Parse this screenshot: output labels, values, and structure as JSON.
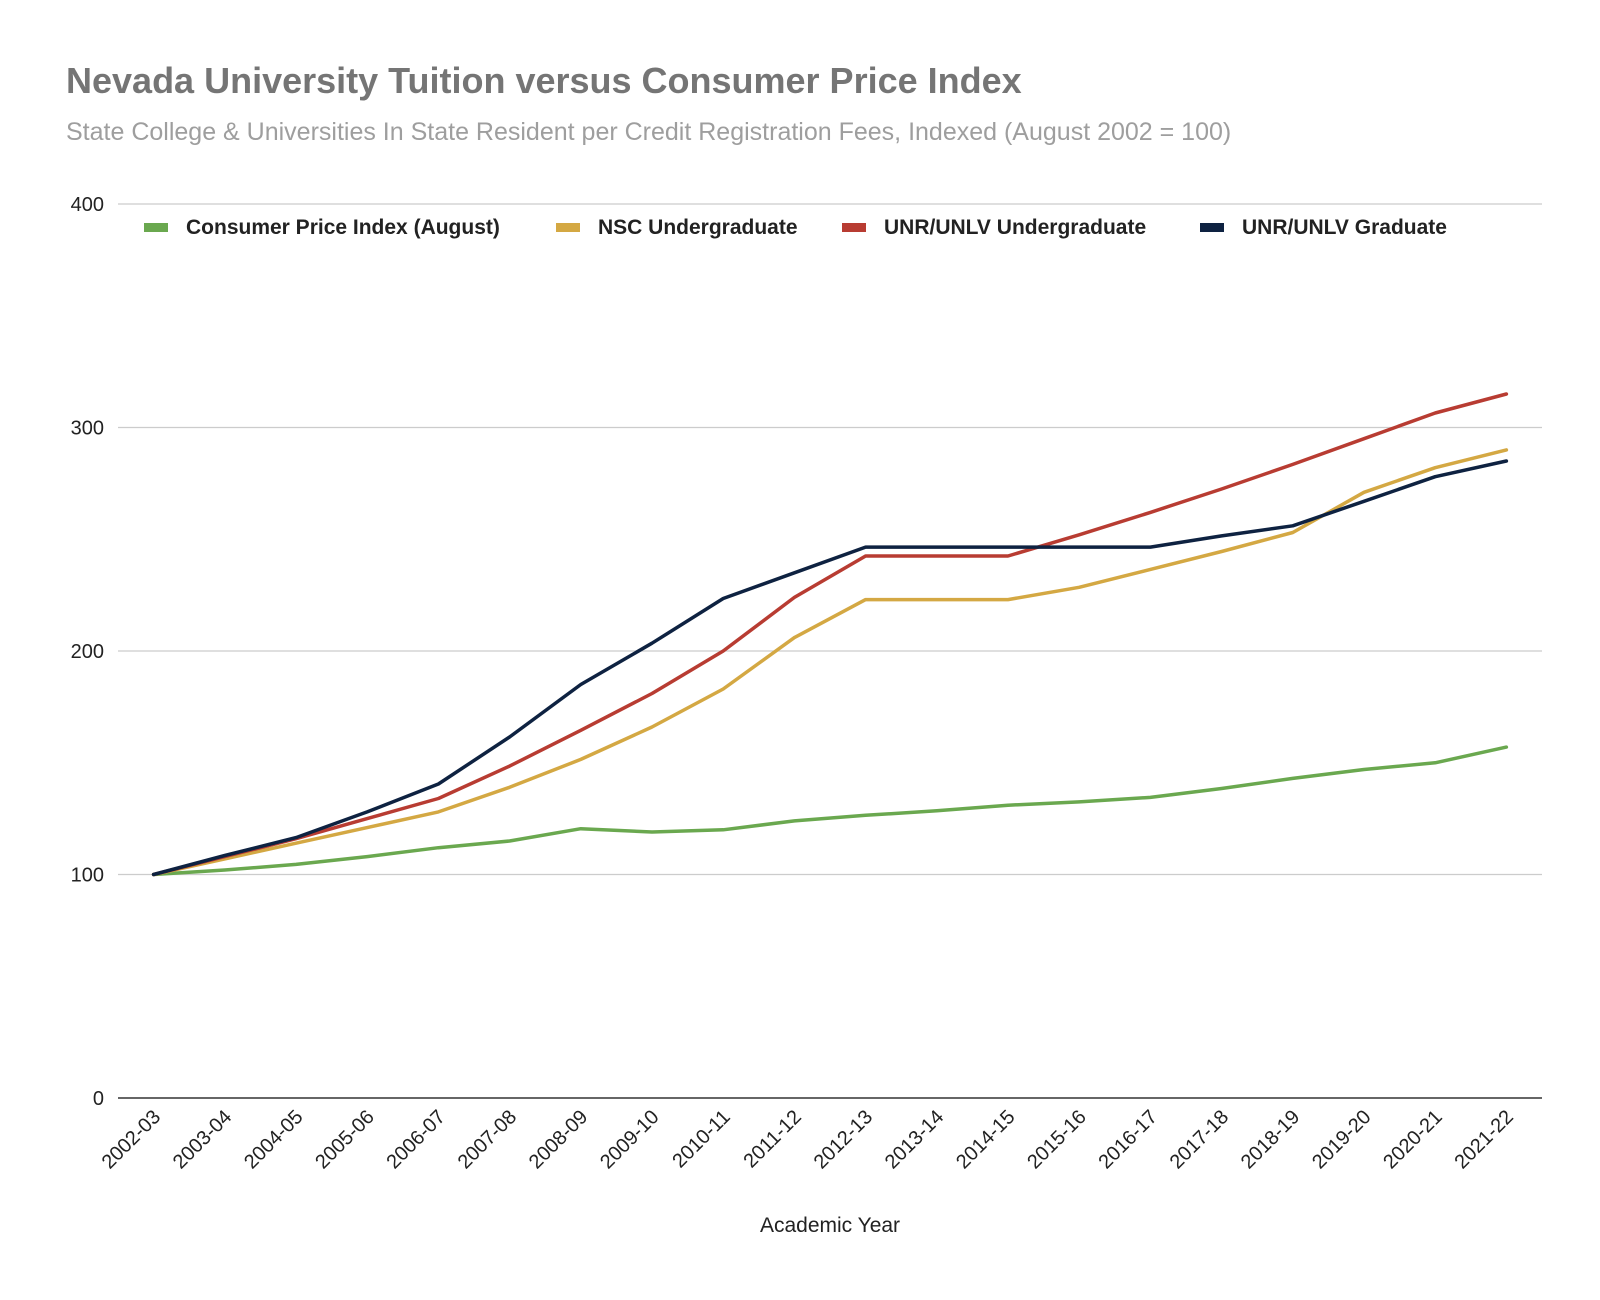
{
  "chart_data": {
    "type": "line",
    "title": "Nevada University Tuition versus Consumer Price Index",
    "subtitle": "State College & Universities In State Resident per Credit Registration Fees, Indexed (August 2002 = 100)",
    "xlabel": "Academic Year",
    "ylabel": "",
    "ylim": [
      0,
      400
    ],
    "yticks": [
      0,
      100,
      200,
      300,
      400
    ],
    "grid": true,
    "legend_position": "top",
    "categories": [
      "2002-03",
      "2003-04",
      "2004-05",
      "2005-06",
      "2006-07",
      "2007-08",
      "2008-09",
      "2009-10",
      "2010-11",
      "2011-12",
      "2012-13",
      "2013-14",
      "2014-15",
      "2015-16",
      "2016-17",
      "2017-18",
      "2018-19",
      "2019-20",
      "2020-21",
      "2021-22"
    ],
    "series": [
      {
        "name": "Consumer Price Index (August)",
        "color": "#6aa84f",
        "values": [
          100,
          102,
          104.5,
          108,
          112,
          115,
          120.5,
          119,
          120,
          124,
          126.5,
          128.5,
          131,
          132.5,
          134.5,
          138.5,
          143,
          147,
          150,
          157
        ]
      },
      {
        "name": "NSC Undergraduate",
        "color": "#d4a843",
        "values": [
          100,
          107,
          114,
          121,
          128,
          139,
          151.5,
          166,
          183,
          206,
          223,
          223,
          223,
          228.5,
          236.5,
          244.5,
          253,
          271,
          282,
          290
        ]
      },
      {
        "name": "UNR/UNLV Undergraduate",
        "color": "#b83c32",
        "values": [
          100,
          108,
          116,
          125,
          134,
          148.5,
          164.5,
          181,
          200,
          224,
          242.5,
          242.5,
          242.5,
          252,
          262,
          272.5,
          283.5,
          295,
          306.5,
          315
        ]
      },
      {
        "name": "UNR/UNLV Graduate",
        "color": "#0e2241",
        "values": [
          100,
          108.5,
          116.5,
          128,
          140.5,
          161.5,
          185,
          203.5,
          223.5,
          235,
          246.5,
          246.5,
          246.5,
          246.5,
          246.5,
          251.5,
          256,
          267,
          278,
          285
        ]
      }
    ]
  }
}
